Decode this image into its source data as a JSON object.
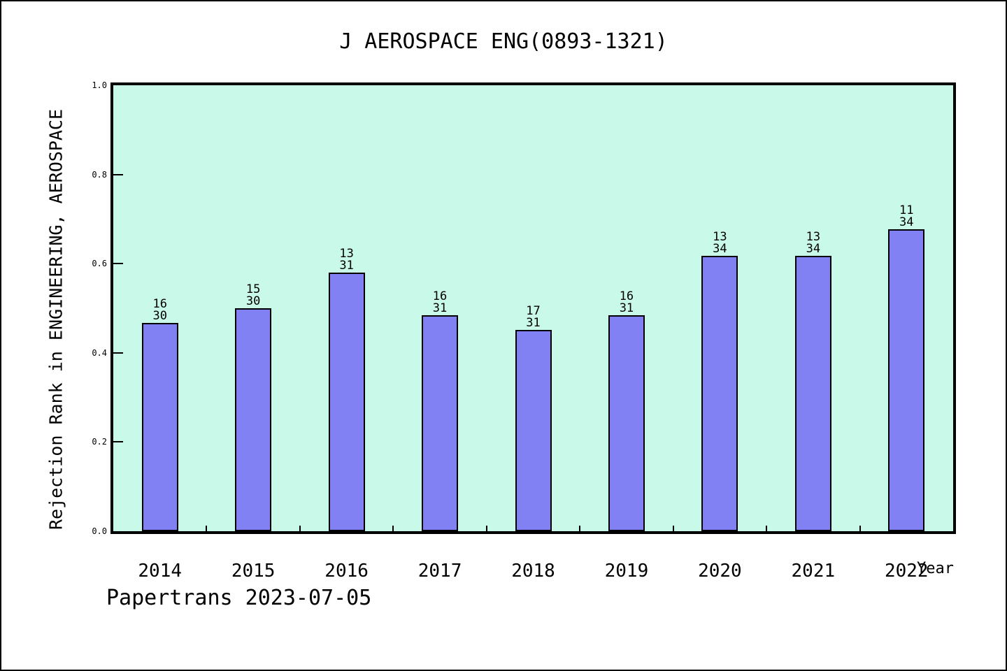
{
  "title": "J AEROSPACE ENG(0893-1321)",
  "footer": "Papertrans 2023-07-05",
  "chart_data": {
    "type": "bar",
    "title": "J AEROSPACE ENG(0893-1321)",
    "xlabel": "Year",
    "ylabel": "Rejection Rank in ENGINEERING, AEROSPACE",
    "categories": [
      "2014",
      "2015",
      "2016",
      "2017",
      "2018",
      "2019",
      "2020",
      "2021",
      "2022"
    ],
    "bar_labels": [
      {
        "numerator": "16",
        "denominator": "30"
      },
      {
        "numerator": "15",
        "denominator": "30"
      },
      {
        "numerator": "13",
        "denominator": "31"
      },
      {
        "numerator": "16",
        "denominator": "31"
      },
      {
        "numerator": "17",
        "denominator": "31"
      },
      {
        "numerator": "16",
        "denominator": "31"
      },
      {
        "numerator": "13",
        "denominator": "34"
      },
      {
        "numerator": "13",
        "denominator": "34"
      },
      {
        "numerator": "11",
        "denominator": "34"
      }
    ],
    "values": [
      0.4667,
      0.5,
      0.5806,
      0.4839,
      0.4516,
      0.4839,
      0.6176,
      0.6176,
      0.6765
    ],
    "ylim": [
      0.0,
      1.0
    ],
    "yticks": [
      {
        "label": "0.0",
        "value": 0.0
      },
      {
        "label": "0.2",
        "value": 0.2
      },
      {
        "label": "0.4",
        "value": 0.4
      },
      {
        "label": "0.6",
        "value": 0.6
      },
      {
        "label": "0.8",
        "value": 0.8
      },
      {
        "label": "1.0",
        "value": 1.0
      }
    ],
    "grid": false,
    "legend": "none",
    "colors": {
      "plot_background": "#c9f9e9",
      "bar_fill": "#8181f3",
      "bar_border": "#000000",
      "frame": "#000000",
      "text": "#000000",
      "page_background": "#ffffff"
    }
  }
}
